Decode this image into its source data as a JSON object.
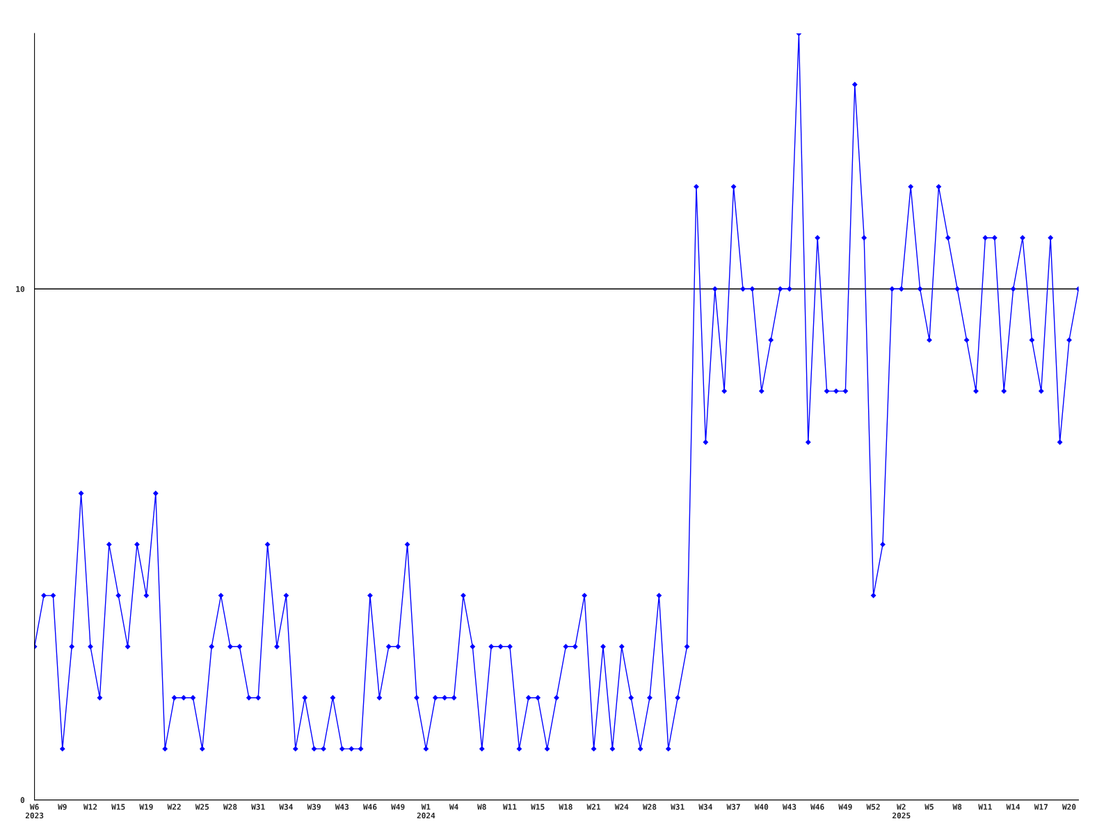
{
  "chart_data": {
    "type": "line",
    "categories": [
      "W6\n2023",
      null,
      null,
      "W9",
      null,
      null,
      "W12",
      null,
      null,
      "W15",
      null,
      null,
      "W19",
      null,
      null,
      "W22",
      null,
      null,
      "W25",
      null,
      null,
      "W28",
      null,
      null,
      "W31",
      null,
      null,
      "W34",
      null,
      null,
      "W39",
      null,
      null,
      "W43",
      null,
      null,
      "W46",
      null,
      null,
      "W49",
      null,
      null,
      "W1\n2024",
      null,
      null,
      "W4",
      null,
      null,
      "W8",
      null,
      null,
      "W11",
      null,
      null,
      "W15",
      null,
      null,
      "W18",
      null,
      null,
      "W21",
      null,
      null,
      "W24",
      null,
      null,
      "W28",
      null,
      null,
      "W31",
      null,
      null,
      "W34",
      null,
      null,
      "W37",
      null,
      null,
      "W40",
      null,
      null,
      "W43",
      null,
      null,
      "W46",
      null,
      null,
      "W49",
      null,
      null,
      "W52",
      null,
      null,
      "W2\n2025",
      null,
      null,
      "W5",
      null,
      null,
      "W8",
      null,
      null,
      "W11",
      null,
      null,
      "W14",
      null,
      null,
      "W17",
      null,
      null,
      "W20",
      null
    ],
    "series": [
      {
        "color": "#0000ff",
        "values": [
          3,
          4,
          4,
          1,
          3,
          6,
          3,
          2,
          5,
          4,
          3,
          5,
          4,
          6,
          1,
          2,
          2,
          2,
          1,
          3,
          4,
          3,
          3,
          2,
          2,
          5,
          3,
          4,
          1,
          2,
          1,
          1,
          2,
          1,
          1,
          1,
          4,
          2,
          3,
          3,
          5,
          2,
          1,
          2,
          2,
          2,
          4,
          3,
          1,
          3,
          3,
          3,
          1,
          2,
          2,
          1,
          2,
          3,
          3,
          4,
          1,
          3,
          1,
          3,
          2,
          1,
          2,
          4,
          1,
          2,
          3,
          12,
          7,
          10,
          8,
          12,
          10,
          10,
          8,
          9,
          10,
          10,
          15,
          7,
          11,
          8,
          8,
          8,
          14,
          11,
          4,
          5,
          10,
          10,
          12,
          10,
          9,
          12,
          11,
          10,
          9,
          8,
          11,
          11,
          8,
          10,
          11,
          9,
          8,
          11,
          7,
          9,
          10
        ]
      }
    ],
    "ylim": [
      0,
      15
    ],
    "yticks": [
      0,
      10
    ],
    "grid": "y",
    "marker": "diamond",
    "line_style": "solid"
  }
}
